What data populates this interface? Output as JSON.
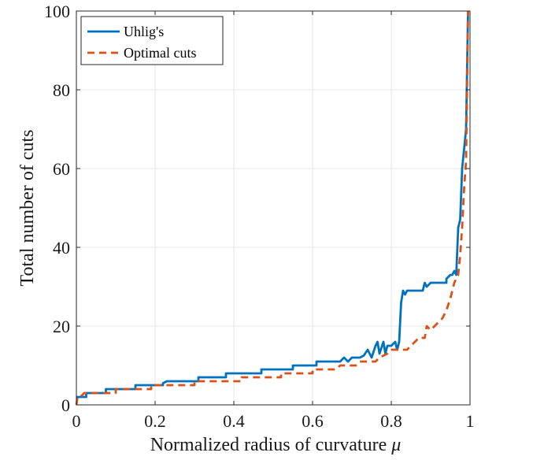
{
  "chart_data": {
    "type": "line",
    "xlabel": "Normalized radius of curvature",
    "xlabel_symbol": "μ",
    "ylabel": "Total number of cuts",
    "xlim": [
      0,
      1
    ],
    "ylim": [
      0,
      100
    ],
    "x_ticks": [
      0,
      0.2,
      0.4,
      0.6,
      0.8,
      1
    ],
    "x_tick_labels": [
      "0",
      "0.2",
      "0.4",
      "0.6",
      "0.8",
      "1"
    ],
    "y_ticks": [
      0,
      20,
      40,
      60,
      80,
      100
    ],
    "y_tick_labels": [
      "0",
      "20",
      "40",
      "60",
      "80",
      "100"
    ],
    "grid": true,
    "legend_position": "top-left",
    "series": [
      {
        "name": "Uhlig's",
        "color": "#0072BD",
        "style": "solid",
        "points": [
          [
            0,
            2
          ],
          [
            0.025,
            2
          ],
          [
            0.025,
            3
          ],
          [
            0.075,
            3
          ],
          [
            0.075,
            4
          ],
          [
            0.15,
            4
          ],
          [
            0.15,
            5
          ],
          [
            0.22,
            5
          ],
          [
            0.22,
            5.5
          ],
          [
            0.23,
            6
          ],
          [
            0.31,
            6
          ],
          [
            0.31,
            7
          ],
          [
            0.38,
            7
          ],
          [
            0.38,
            8
          ],
          [
            0.47,
            8
          ],
          [
            0.47,
            9
          ],
          [
            0.55,
            9
          ],
          [
            0.55,
            10
          ],
          [
            0.61,
            10
          ],
          [
            0.61,
            11
          ],
          [
            0.67,
            11
          ],
          [
            0.68,
            12
          ],
          [
            0.69,
            11
          ],
          [
            0.7,
            12
          ],
          [
            0.72,
            12
          ],
          [
            0.73,
            12.5
          ],
          [
            0.74,
            14
          ],
          [
            0.75,
            12
          ],
          [
            0.76,
            15
          ],
          [
            0.765,
            16
          ],
          [
            0.77,
            13
          ],
          [
            0.78,
            16
          ],
          [
            0.785,
            13
          ],
          [
            0.79,
            15
          ],
          [
            0.8,
            15
          ],
          [
            0.81,
            16
          ],
          [
            0.815,
            14
          ],
          [
            0.82,
            16
          ],
          [
            0.825,
            26
          ],
          [
            0.83,
            29
          ],
          [
            0.835,
            28
          ],
          [
            0.84,
            29
          ],
          [
            0.88,
            29
          ],
          [
            0.885,
            31
          ],
          [
            0.89,
            30
          ],
          [
            0.9,
            31
          ],
          [
            0.94,
            31
          ],
          [
            0.94,
            32
          ],
          [
            0.95,
            33
          ],
          [
            0.955,
            33
          ],
          [
            0.96,
            34
          ],
          [
            0.965,
            33
          ],
          [
            0.97,
            45
          ],
          [
            0.975,
            47
          ],
          [
            0.98,
            60
          ],
          [
            0.985,
            65
          ],
          [
            0.99,
            70
          ],
          [
            0.995,
            100
          ]
        ]
      },
      {
        "name": "Optimal cuts",
        "color": "#D95319",
        "style": "dashed",
        "points": [
          [
            0,
            0
          ],
          [
            0.003,
            2
          ],
          [
            0.01,
            2
          ],
          [
            0.02,
            3
          ],
          [
            0.1,
            3
          ],
          [
            0.1,
            4
          ],
          [
            0.19,
            4
          ],
          [
            0.19,
            5
          ],
          [
            0.3,
            5
          ],
          [
            0.3,
            6
          ],
          [
            0.42,
            6
          ],
          [
            0.42,
            7
          ],
          [
            0.52,
            7
          ],
          [
            0.52,
            8
          ],
          [
            0.6,
            8
          ],
          [
            0.6,
            9
          ],
          [
            0.66,
            9
          ],
          [
            0.67,
            10
          ],
          [
            0.71,
            10
          ],
          [
            0.72,
            11
          ],
          [
            0.76,
            11
          ],
          [
            0.77,
            12
          ],
          [
            0.79,
            13
          ],
          [
            0.8,
            14
          ],
          [
            0.84,
            14
          ],
          [
            0.85,
            15
          ],
          [
            0.87,
            17
          ],
          [
            0.885,
            17
          ],
          [
            0.89,
            20
          ],
          [
            0.9,
            19
          ],
          [
            0.91,
            20
          ],
          [
            0.92,
            21
          ],
          [
            0.93,
            22
          ],
          [
            0.94,
            24
          ],
          [
            0.95,
            27
          ],
          [
            0.96,
            31
          ],
          [
            0.97,
            33
          ],
          [
            0.975,
            38
          ],
          [
            0.98,
            45
          ],
          [
            0.985,
            55
          ],
          [
            0.99,
            62
          ],
          [
            0.995,
            100
          ]
        ]
      }
    ]
  }
}
